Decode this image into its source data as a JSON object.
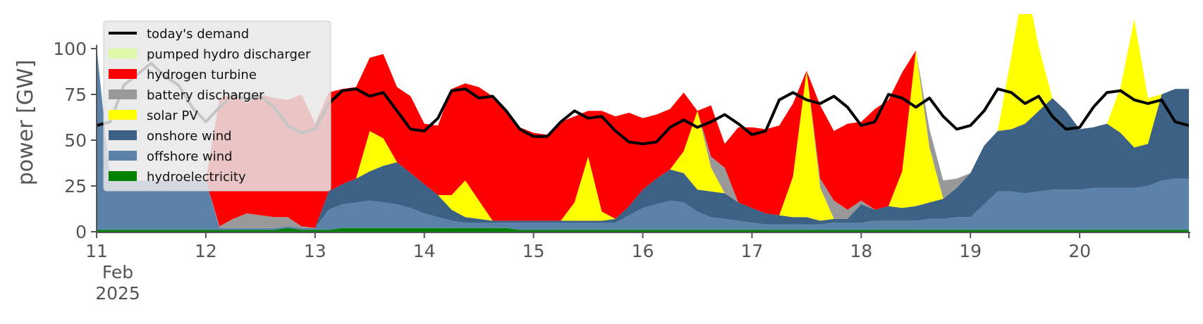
{
  "chart_data": {
    "type": "area",
    "title": "",
    "xlabel": "",
    "ylabel": "power [GW]",
    "x_start": "2025-02-11",
    "x_end": "2025-02-21",
    "xlim": [
      "2025-02-11",
      "2025-02-21"
    ],
    "ylim": [
      0,
      118
    ],
    "yticks": [
      0,
      25,
      50,
      75,
      100
    ],
    "xticks": [
      {
        "date": "2025-02-11",
        "label": "11",
        "sub1": "Feb",
        "sub2": "2025"
      },
      {
        "date": "2025-02-12",
        "label": "12"
      },
      {
        "date": "2025-02-13",
        "label": "13"
      },
      {
        "date": "2025-02-14",
        "label": "14"
      },
      {
        "date": "2025-02-15",
        "label": "15"
      },
      {
        "date": "2025-02-16",
        "label": "16"
      },
      {
        "date": "2025-02-17",
        "label": "17"
      },
      {
        "date": "2025-02-18",
        "label": "18"
      },
      {
        "date": "2025-02-19",
        "label": "19"
      },
      {
        "date": "2025-02-20",
        "label": "20"
      }
    ],
    "legend_position": "top-left",
    "x": [
      "2025-02-11 00:00",
      "2025-02-11 03:00",
      "2025-02-11 06:00",
      "2025-02-11 09:00",
      "2025-02-11 12:00",
      "2025-02-11 15:00",
      "2025-02-11 18:00",
      "2025-02-11 21:00",
      "2025-02-12 00:00",
      "2025-02-12 03:00",
      "2025-02-12 06:00",
      "2025-02-12 09:00",
      "2025-02-12 12:00",
      "2025-02-12 15:00",
      "2025-02-12 18:00",
      "2025-02-12 21:00",
      "2025-02-13 00:00",
      "2025-02-13 03:00",
      "2025-02-13 06:00",
      "2025-02-13 09:00",
      "2025-02-13 12:00",
      "2025-02-13 15:00",
      "2025-02-13 18:00",
      "2025-02-13 21:00",
      "2025-02-14 00:00",
      "2025-02-14 03:00",
      "2025-02-14 06:00",
      "2025-02-14 09:00",
      "2025-02-14 12:00",
      "2025-02-14 15:00",
      "2025-02-14 18:00",
      "2025-02-14 21:00",
      "2025-02-15 00:00",
      "2025-02-15 03:00",
      "2025-02-15 06:00",
      "2025-02-15 09:00",
      "2025-02-15 12:00",
      "2025-02-15 15:00",
      "2025-02-15 18:00",
      "2025-02-15 21:00",
      "2025-02-16 00:00",
      "2025-02-16 03:00",
      "2025-02-16 06:00",
      "2025-02-16 09:00",
      "2025-02-16 12:00",
      "2025-02-16 15:00",
      "2025-02-16 18:00",
      "2025-02-16 21:00",
      "2025-02-17 00:00",
      "2025-02-17 03:00",
      "2025-02-17 06:00",
      "2025-02-17 09:00",
      "2025-02-17 12:00",
      "2025-02-17 15:00",
      "2025-02-17 18:00",
      "2025-02-17 21:00",
      "2025-02-18 00:00",
      "2025-02-18 03:00",
      "2025-02-18 06:00",
      "2025-02-18 09:00",
      "2025-02-18 12:00",
      "2025-02-18 15:00",
      "2025-02-18 18:00",
      "2025-02-18 21:00",
      "2025-02-19 00:00",
      "2025-02-19 03:00",
      "2025-02-19 06:00",
      "2025-02-19 09:00",
      "2025-02-19 12:00",
      "2025-02-19 15:00",
      "2025-02-19 18:00",
      "2025-02-19 21:00",
      "2025-02-20 00:00",
      "2025-02-20 03:00",
      "2025-02-20 06:00",
      "2025-02-20 09:00",
      "2025-02-20 12:00",
      "2025-02-20 15:00",
      "2025-02-20 18:00",
      "2025-02-20 21:00",
      "2025-02-21 00:00"
    ],
    "series": [
      {
        "name": "hydroelectricity",
        "color": "#008000",
        "values": [
          1,
          1,
          1,
          1,
          1,
          1,
          1,
          1,
          1,
          1,
          1,
          1,
          1,
          1,
          2,
          1,
          1,
          1,
          2,
          2,
          2,
          2,
          2,
          2,
          2,
          2,
          2,
          2,
          2,
          2,
          2,
          1,
          1,
          1,
          1,
          1,
          1,
          1,
          1,
          1,
          1,
          1,
          1,
          1,
          1,
          1,
          1,
          1,
          1,
          1,
          1,
          1,
          1,
          1,
          1,
          1,
          1,
          1,
          1,
          1,
          1,
          1,
          1,
          1,
          1,
          1,
          1,
          1,
          1,
          1,
          1,
          1,
          1,
          1,
          1,
          1,
          1,
          1,
          1,
          1,
          1
        ]
      },
      {
        "name": "offshore wind",
        "color": "#5b83a9",
        "values": [
          100,
          27,
          27,
          27,
          27,
          27,
          27,
          27,
          27,
          1,
          1,
          1,
          1,
          1,
          1,
          1,
          1,
          11,
          13,
          14,
          15,
          14,
          13,
          11,
          8,
          6,
          4,
          3,
          3,
          3,
          3,
          4,
          4,
          4,
          4,
          4,
          4,
          4,
          4,
          8,
          12,
          14,
          16,
          15,
          10,
          7,
          6,
          5,
          4,
          3,
          3,
          3,
          3,
          3,
          4,
          4,
          4,
          5,
          5,
          5,
          5,
          6,
          6,
          7,
          7,
          14,
          21,
          21,
          20,
          21,
          22,
          22,
          22,
          23,
          23,
          23,
          23,
          24,
          27,
          28,
          28
        ]
      },
      {
        "name": "onshore wind",
        "color": "#3c6184",
        "values": [
          0,
          0,
          0,
          0,
          0,
          0,
          0,
          0,
          0,
          0,
          0,
          0,
          0,
          0,
          0,
          0,
          0,
          10,
          11,
          13,
          16,
          20,
          23,
          19,
          16,
          12,
          6,
          3,
          2,
          1,
          1,
          1,
          1,
          1,
          1,
          1,
          1,
          1,
          2,
          5,
          10,
          14,
          17,
          16,
          12,
          14,
          14,
          10,
          8,
          6,
          5,
          4,
          4,
          2,
          2,
          2,
          10,
          6,
          8,
          7,
          8,
          9,
          11,
          16,
          24,
          32,
          33,
          34,
          38,
          44,
          50,
          43,
          33,
          33,
          35,
          30,
          22,
          23,
          47,
          49,
          49
        ]
      },
      {
        "name": "solar PV",
        "color": "#ffff00",
        "values": [
          0,
          0,
          0,
          0,
          0,
          0,
          0,
          0,
          0,
          0,
          0,
          0,
          0,
          0,
          0,
          0,
          0,
          0,
          0,
          0,
          22,
          15,
          0,
          0,
          0,
          0,
          8,
          20,
          10,
          0,
          0,
          0,
          0,
          0,
          0,
          10,
          35,
          5,
          0,
          0,
          0,
          0,
          0,
          12,
          43,
          13,
          0,
          0,
          0,
          0,
          0,
          22,
          80,
          18,
          0,
          0,
          0,
          0,
          0,
          20,
          85,
          30,
          0,
          0,
          0,
          0,
          0,
          40,
          80,
          35,
          0,
          0,
          0,
          0,
          0,
          25,
          70,
          25,
          0,
          0,
          0
        ]
      },
      {
        "name": "battery discharger",
        "color": "#999999",
        "values": [
          0,
          0,
          0,
          0,
          0,
          0,
          0,
          0,
          0,
          1,
          5,
          8,
          7,
          6,
          5,
          1,
          0,
          0,
          0,
          0,
          0,
          0,
          0,
          0,
          0,
          0,
          0,
          0,
          0,
          0,
          0,
          0,
          0,
          0,
          0,
          0,
          0,
          0,
          0,
          0,
          0,
          0,
          0,
          0,
          0,
          6,
          14,
          0,
          0,
          0,
          0,
          0,
          0,
          5,
          10,
          5,
          2,
          0,
          0,
          0,
          0,
          10,
          10,
          5,
          0,
          0,
          0,
          0,
          0,
          0,
          0,
          0,
          0,
          0,
          0,
          0,
          0,
          0,
          0,
          0,
          0
        ]
      },
      {
        "name": "hydrogen turbine",
        "color": "#ff0000",
        "values": [
          0,
          0,
          0,
          0,
          0,
          0,
          0,
          0,
          0,
          70,
          68,
          60,
          66,
          65,
          64,
          72,
          57,
          54,
          52,
          50,
          40,
          46,
          41,
          42,
          33,
          38,
          58,
          53,
          62,
          68,
          60,
          51,
          48,
          47,
          54,
          47,
          25,
          55,
          56,
          51,
          39,
          35,
          33,
          32,
          0,
          28,
          13,
          41,
          44,
          46,
          49,
          40,
          0,
          40,
          38,
          47,
          43,
          55,
          58,
          54,
          0,
          0,
          0,
          0,
          0,
          0,
          0,
          0,
          0,
          0,
          0,
          0,
          0,
          0,
          0,
          0,
          0,
          0,
          0,
          0,
          0
        ]
      },
      {
        "name": "pumped hydro discharger",
        "color": "#dff7a8",
        "values": [
          0,
          0,
          0,
          0,
          0,
          0,
          0,
          0,
          0,
          0,
          0,
          0,
          0,
          0,
          0,
          0,
          0,
          0,
          0,
          0,
          0,
          0,
          0,
          0,
          0,
          0,
          0,
          0,
          0,
          0,
          0,
          0,
          0,
          0,
          0,
          0,
          0,
          0,
          0,
          0,
          0,
          0,
          0,
          0,
          0,
          0,
          0,
          0,
          0,
          0,
          0,
          0,
          0,
          0,
          0,
          0,
          0,
          0,
          0,
          0,
          0,
          0,
          0,
          0,
          0,
          0,
          0,
          0,
          0,
          0,
          0,
          0,
          0,
          0,
          0,
          0,
          0,
          0,
          0,
          0,
          0
        ]
      }
    ],
    "demand": {
      "name": "today's demand",
      "color": "#000000",
      "values": [
        58,
        60,
        80,
        86,
        92,
        85,
        80,
        68,
        60,
        68,
        75,
        72,
        74,
        68,
        58,
        54,
        56,
        70,
        77,
        78,
        74,
        76,
        66,
        56,
        55,
        62,
        77,
        78,
        73,
        74,
        66,
        56,
        52,
        52,
        60,
        66,
        62,
        63,
        55,
        49,
        48,
        49,
        57,
        61,
        57,
        60,
        64,
        59,
        53,
        55,
        72,
        76,
        72,
        70,
        74,
        68,
        58,
        60,
        75,
        73,
        68,
        73,
        63,
        56,
        58,
        66,
        78,
        76,
        70,
        74,
        63,
        56,
        57,
        68,
        76,
        77,
        72,
        70,
        72,
        60,
        58
      ]
    }
  },
  "legend": {
    "items": [
      {
        "label": "today's demand",
        "kind": "line",
        "color": "#000000"
      },
      {
        "label": "pumped hydro discharger",
        "kind": "patch",
        "color": "#dff7a8"
      },
      {
        "label": "hydrogen turbine",
        "kind": "patch",
        "color": "#ff0000"
      },
      {
        "label": "battery discharger",
        "kind": "patch",
        "color": "#999999"
      },
      {
        "label": "solar PV",
        "kind": "patch",
        "color": "#ffff00"
      },
      {
        "label": "onshore wind",
        "kind": "patch",
        "color": "#3c6184"
      },
      {
        "label": "offshore wind",
        "kind": "patch",
        "color": "#5b83a9"
      },
      {
        "label": "hydroelectricity",
        "kind": "patch",
        "color": "#008000"
      }
    ]
  }
}
